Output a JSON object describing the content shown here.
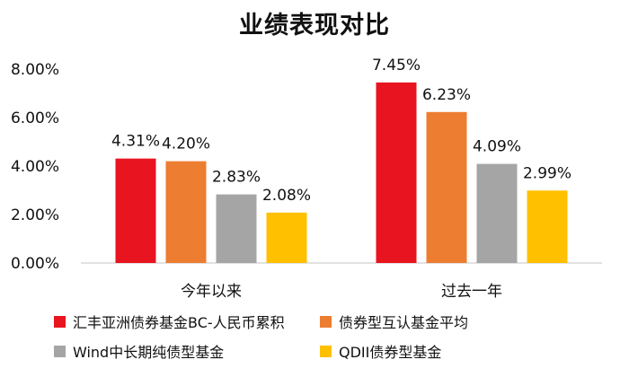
{
  "chart_data": {
    "type": "bar",
    "title": "业绩表现对比",
    "categories": [
      "今年以来",
      "过去一年"
    ],
    "series": [
      {
        "name": "汇丰亚洲债券基金BC-人民币累积",
        "values": [
          4.31,
          7.45
        ],
        "labels": [
          "4.31%",
          "7.45%"
        ],
        "color": "#e8141f"
      },
      {
        "name": "债券型互认基金平均",
        "values": [
          4.2,
          6.23
        ],
        "labels": [
          "4.20%",
          "6.23%"
        ],
        "color": "#ed7d31"
      },
      {
        "name": "Wind中长期纯债型基金",
        "values": [
          2.83,
          4.09
        ],
        "labels": [
          "2.83%",
          "4.09%"
        ],
        "color": "#a5a5a5"
      },
      {
        "name": "QDII债券型基金",
        "values": [
          2.08,
          2.99
        ],
        "labels": [
          "2.08%",
          "2.99%"
        ],
        "color": "#ffc000"
      }
    ],
    "ylim": [
      0,
      8
    ],
    "yticks": [
      0,
      2,
      4,
      6,
      8
    ],
    "ytick_labels": [
      "0.00%",
      "2.00%",
      "4.00%",
      "6.00%",
      "8.00%"
    ],
    "xlabel": "",
    "ylabel": "",
    "grid": false,
    "legend": "bottom"
  }
}
